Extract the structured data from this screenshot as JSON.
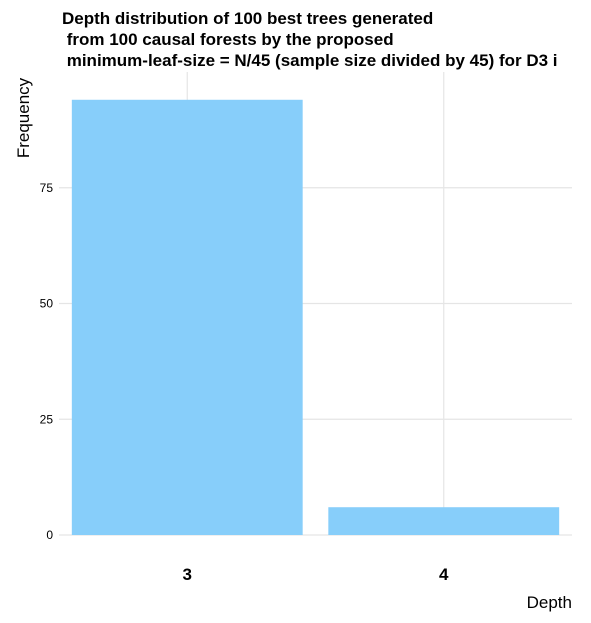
{
  "chart_data": {
    "type": "bar",
    "title_lines": [
      "Depth distribution of 100 best trees generated",
      " from 100 causal forests by the proposed",
      " minimum-leaf-size = N/45 (sample size divided by 45) for D3 i"
    ],
    "xlabel": "Depth",
    "ylabel": "Frequency",
    "categories": [
      "3",
      "4"
    ],
    "values": [
      94,
      6
    ],
    "ylim": [
      0,
      100
    ],
    "yticks": [
      0,
      25,
      50,
      75
    ],
    "bar_color": "#87CEFA",
    "grid": true
  }
}
